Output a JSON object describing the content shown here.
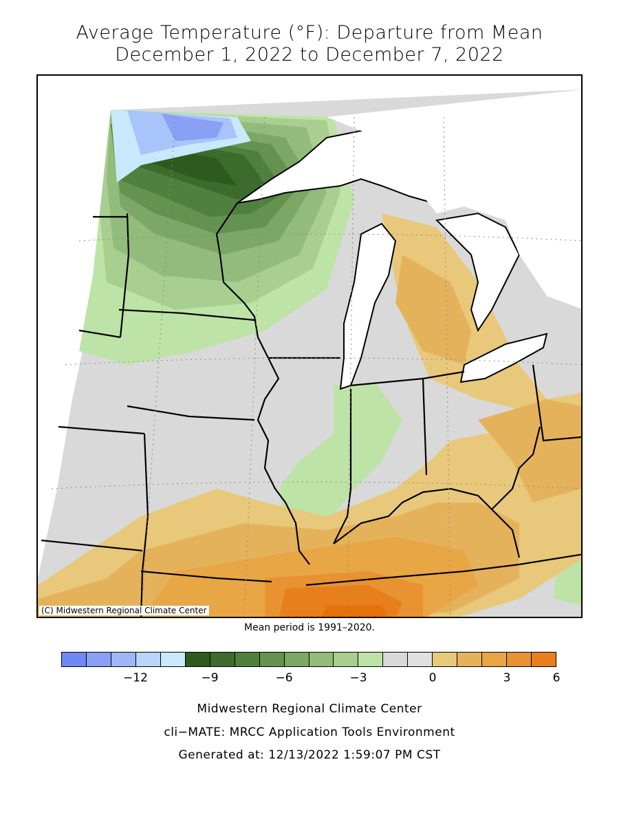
{
  "title": {
    "line1": "Average Temperature (°F): Departure from Mean",
    "line2": "December 1, 2022 to December 7, 2022"
  },
  "map": {
    "copyright": "(C) Midwestern Regional Climate Center",
    "region_colors": {
      "minus14": "#6e88f5",
      "minus11": "#a8c4fa",
      "minus10": "#c9e8fb",
      "minus9": "#2e5a1e",
      "minus8": "#3d6b2c",
      "minus7": "#50803e",
      "minus6": "#66924f",
      "minus5": "#7ca766",
      "minus4": "#93bb7c",
      "minus3": "#a8cf90",
      "minus2": "#bee3a6",
      "zero": "#d9d9d9",
      "plus1": "#e8c87a",
      "plus2": "#e5b25c",
      "plus3": "#e8a645",
      "plus4": "#e89232",
      "plus5": "#e67f1c",
      "plus6": "#e67009"
    }
  },
  "mean_period": "Mean period is 1991–2020.",
  "legend": {
    "colors": [
      "#6e88f5",
      "#8aa0f5",
      "#a0b6f7",
      "#b8d6fa",
      "#c9e8fb",
      "#2e5a1e",
      "#3d6b2c",
      "#50803e",
      "#66924f",
      "#7ca766",
      "#93bb7c",
      "#a8cf90",
      "#bee3a6",
      "#d9d9d9",
      "#e0e0e0",
      "#e8c87a",
      "#e5b25c",
      "#e8a645",
      "#e89232",
      "#e67f1c"
    ],
    "ticks": [
      "−12",
      "−9",
      "−6",
      "−3",
      "0",
      "3",
      "6"
    ]
  },
  "footer": {
    "line1": "Midwestern Regional Climate Center",
    "line2": "cli−MATE: MRCC Application Tools Environment",
    "line3": "Generated at: 12/13/2022 1:59:07 PM CST"
  }
}
